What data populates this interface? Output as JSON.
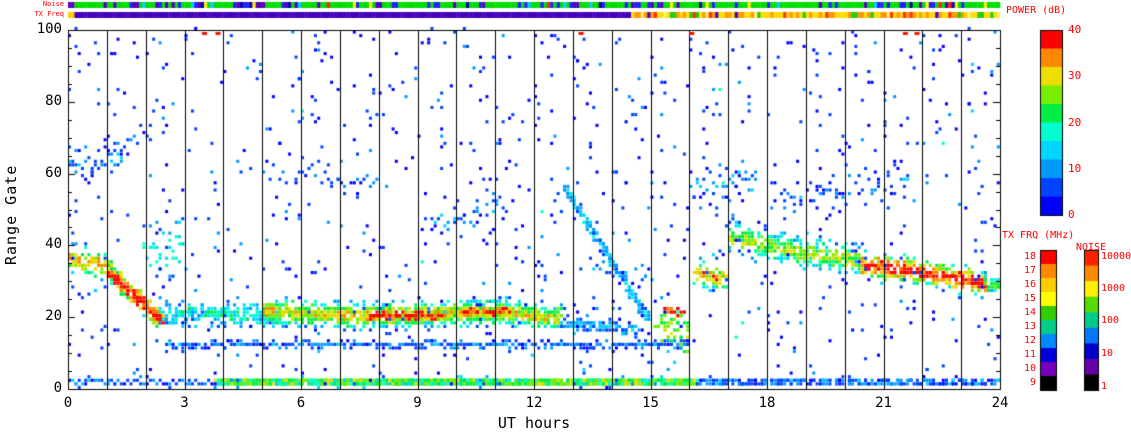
{
  "chart_data": {
    "type": "heatmap",
    "xlabel": "UT hours",
    "ylabel": "Range Gate",
    "xlim": [
      0,
      24
    ],
    "ylim": [
      0,
      100
    ],
    "x_ticks": [
      0,
      3,
      6,
      9,
      12,
      15,
      18,
      21,
      24
    ],
    "y_ticks": [
      0,
      20,
      40,
      60,
      80,
      100
    ],
    "grid": "vertical black line at every hour",
    "power_scale": {
      "min": 0,
      "max": 40,
      "colors": [
        "#0000ff",
        "#0044ff",
        "#0099ff",
        "#00d5ff",
        "#00ffd0",
        "#00ee44",
        "#77ee00",
        "#eedd00",
        "#ff8800",
        "#ff0000"
      ]
    },
    "colorbars": {
      "power": {
        "title": "POWER (dB)",
        "ticks": [
          40,
          30,
          20,
          10,
          0
        ],
        "colors_top_to_bottom": [
          "#ff0000",
          "#ff8800",
          "#eedd00",
          "#77ee00",
          "#00ee44",
          "#00ffd0",
          "#00d5ff",
          "#0099ff",
          "#0044ff",
          "#0000ff"
        ]
      },
      "tx_frq": {
        "title": "TX FRQ (MHz)",
        "ticks": [
          18,
          17,
          16,
          15,
          14,
          13,
          12,
          11,
          10,
          9
        ],
        "colors_top_to_bottom": [
          "#ff0000",
          "#ff8800",
          "#ffcc00",
          "#ffff00",
          "#33cc00",
          "#00cc88",
          "#0088ff",
          "#0000dd",
          "#7700bb",
          "#000000"
        ]
      },
      "noise": {
        "title": "NOISE",
        "ticks": [
          "10000",
          "1000",
          "100",
          "10",
          "1"
        ],
        "colors_top_to_bottom": [
          "#ff2200",
          "#ff8800",
          "#ffee00",
          "#55dd00",
          "#00cc88",
          "#0077ff",
          "#0000cc",
          "#6600aa",
          "#000000"
        ]
      }
    },
    "noise_strip": {
      "label": "Noise",
      "base_color": "#00dd00",
      "specks": [
        {
          "color": "#2222ff",
          "p": 0.14
        },
        {
          "color": "#5500bb",
          "p": 0.09
        },
        {
          "color": "#0000aa",
          "p": 0.04
        },
        {
          "color": "#00ccff",
          "p": 0.03
        },
        {
          "color": "#ff2200",
          "p": 0.02
        },
        {
          "color": "#ffee00",
          "p": 0.03
        }
      ]
    },
    "tx_freq_strip": {
      "label": "TX Freq",
      "segments": [
        {
          "t": [
            0,
            0.15
          ],
          "color": "#ffcc00"
        },
        {
          "t": [
            0.15,
            14.4
          ],
          "color": "#4400bb"
        },
        {
          "t": [
            14.4,
            24.01
          ],
          "mix": [
            {
              "color": "#ffdd00",
              "p": 0.38
            },
            {
              "color": "#ff9900",
              "p": 0.27
            },
            {
              "color": "#ff3300",
              "p": 0.1
            },
            {
              "color": "#22cc00",
              "p": 0.12
            },
            {
              "color": "#4400bb",
              "p": 0.07
            },
            {
              "color": "#ffee66",
              "p": 0.06
            }
          ]
        }
      ]
    },
    "features": [
      {
        "name": "h0-cluster",
        "t": [
          0.0,
          1.15
        ],
        "path": [
          [
            0.0,
            36
          ],
          [
            1.15,
            33
          ]
        ],
        "spread": 6,
        "density": 7,
        "p_core": 32,
        "p_edge": 4
      },
      {
        "name": "h0-upper",
        "t": [
          0.0,
          1.4
        ],
        "path": [
          [
            0.0,
            62
          ],
          [
            1.4,
            64
          ]
        ],
        "spread": 7,
        "density": 2,
        "p_core": 10,
        "p_edge": 2
      },
      {
        "name": "dawn-descending",
        "t": [
          1.05,
          2.45
        ],
        "path": [
          [
            1.05,
            32
          ],
          [
            2.45,
            18
          ]
        ],
        "spread": 4,
        "density": 12,
        "p_core": 40,
        "p_edge": 8
      },
      {
        "name": "dawn-column",
        "t": [
          1.95,
          3.0
        ],
        "path": [
          [
            1.95,
            38
          ],
          [
            3.0,
            40
          ]
        ],
        "spread": 11,
        "density": 3,
        "p_core": 16,
        "p_edge": 4
      },
      {
        "name": "morning-band",
        "t": [
          2.4,
          5.4
        ],
        "path": [
          [
            2.4,
            21
          ],
          [
            5.4,
            20
          ]
        ],
        "spread": 5,
        "density": 6,
        "p_core": 17,
        "p_edge": 4
      },
      {
        "name": "day-band",
        "t": [
          5.0,
          12.7
        ],
        "path": [
          [
            5.0,
            21
          ],
          [
            8.0,
            20
          ],
          [
            11.0,
            21
          ],
          [
            12.7,
            19
          ]
        ],
        "spread": 5,
        "density": 10,
        "p_core": 30,
        "p_edge": 4
      },
      {
        "name": "day-core-1",
        "t": [
          7.7,
          9.7
        ],
        "path": [
          [
            7.7,
            20
          ],
          [
            9.7,
            20
          ]
        ],
        "spread": 2,
        "density": 5,
        "p_core": 40,
        "p_edge": 20
      },
      {
        "name": "day-core-2",
        "t": [
          10.2,
          11.3
        ],
        "path": [
          [
            10.2,
            21
          ],
          [
            11.3,
            21
          ]
        ],
        "spread": 2,
        "density": 4,
        "p_core": 38,
        "p_edge": 18
      },
      {
        "name": "afternoon-thin",
        "t": [
          12.7,
          14.7
        ],
        "path": [
          [
            12.7,
            18
          ],
          [
            14.7,
            16
          ]
        ],
        "spread": 3,
        "density": 4,
        "p_core": 12,
        "p_edge": 3
      },
      {
        "name": "descending-streak",
        "t": [
          12.8,
          14.9
        ],
        "path": [
          [
            12.8,
            55
          ],
          [
            14.9,
            19
          ]
        ],
        "spread": 2,
        "density": 6,
        "p_core": 13,
        "p_edge": 4
      },
      {
        "name": "afternoon-specks",
        "t": [
          13.4,
          15.0
        ],
        "path": [
          [
            13.4,
            33
          ],
          [
            15.0,
            30
          ]
        ],
        "spread": 5,
        "density": 1,
        "p_core": 8,
        "p_edge": 1
      },
      {
        "name": "pre-dusk-column",
        "t": [
          15.15,
          15.95
        ],
        "path": [
          [
            15.15,
            17
          ],
          [
            15.95,
            14
          ]
        ],
        "spread": 11,
        "density": 6,
        "p_core": 26,
        "p_edge": 6
      },
      {
        "name": "pre-dusk-red",
        "t": [
          15.35,
          15.8
        ],
        "path": [
          [
            15.35,
            22
          ],
          [
            15.8,
            21
          ]
        ],
        "spread": 2,
        "density": 3,
        "p_core": 40,
        "p_edge": 25
      },
      {
        "name": "dusk-cluster",
        "t": [
          16.15,
          16.95
        ],
        "path": [
          [
            16.15,
            32
          ],
          [
            16.95,
            30
          ]
        ],
        "spread": 5,
        "density": 6,
        "p_core": 33,
        "p_edge": 6
      },
      {
        "name": "dusk-upper",
        "t": [
          16.0,
          17.7
        ],
        "path": [
          [
            16.0,
            55
          ],
          [
            17.7,
            58
          ]
        ],
        "spread": 9,
        "density": 2,
        "p_core": 9,
        "p_edge": 2
      },
      {
        "name": "evening-band",
        "t": [
          17.0,
          20.4
        ],
        "path": [
          [
            17.0,
            42
          ],
          [
            18.6,
            38
          ],
          [
            20.4,
            35
          ]
        ],
        "spread": 6,
        "density": 8,
        "p_core": 27,
        "p_edge": 4
      },
      {
        "name": "evening-intense",
        "t": [
          20.4,
          23.6
        ],
        "path": [
          [
            20.4,
            34
          ],
          [
            22.0,
            32
          ],
          [
            23.6,
            29
          ]
        ],
        "spread": 5,
        "density": 9,
        "p_core": 39,
        "p_edge": 6
      },
      {
        "name": "late-tail",
        "t": [
          23.6,
          24.0
        ],
        "path": [
          [
            23.6,
            29
          ],
          [
            24.0,
            28
          ]
        ],
        "spread": 4,
        "density": 6,
        "p_core": 24,
        "p_edge": 5
      },
      {
        "name": "evening-upper-scatter",
        "t": [
          18.4,
          21.6
        ],
        "path": [
          [
            18.4,
            52
          ],
          [
            21.6,
            58
          ]
        ],
        "spread": 7,
        "density": 1.5,
        "p_core": 8,
        "p_edge": 1
      },
      {
        "name": "ground-band",
        "t": [
          3.8,
          16.2
        ],
        "path": [
          [
            3.8,
            1.5
          ],
          [
            16.2,
            1.5
          ]
        ],
        "spread": 1.3,
        "density": 7,
        "p_core": 26,
        "p_edge": 6
      },
      {
        "name": "ground-sparse-early",
        "t": [
          0.0,
          3.8
        ],
        "path": [
          [
            0.0,
            1.5
          ],
          [
            3.8,
            1.5
          ]
        ],
        "spread": 1,
        "density": 1,
        "p_core": 8,
        "p_edge": 1
      },
      {
        "name": "ground-sparse-late",
        "t": [
          16.2,
          24.0
        ],
        "path": [
          [
            16.2,
            1.5
          ],
          [
            24.0,
            1.5
          ]
        ],
        "spread": 1,
        "density": 2.5,
        "p_core": 9,
        "p_edge": 1
      },
      {
        "name": "meteor-line",
        "t": [
          2.5,
          16.0
        ],
        "path": [
          [
            2.5,
            12
          ],
          [
            16.0,
            12
          ]
        ],
        "spread": 1.5,
        "density": 1.8,
        "p_core": 9,
        "p_edge": 2
      },
      {
        "name": "mid-scatter-9to11",
        "t": [
          9.1,
          11.3
        ],
        "path": [
          [
            9.1,
            46
          ],
          [
            11.3,
            50
          ]
        ],
        "spread": 5,
        "density": 1.2,
        "p_core": 9,
        "p_edge": 2
      },
      {
        "name": "h1-upper-specks",
        "t": [
          0.9,
          2.0
        ],
        "path": [
          [
            0.9,
            66
          ],
          [
            2.0,
            70
          ]
        ],
        "spread": 6,
        "density": 1,
        "p_core": 7,
        "p_edge": 1
      },
      {
        "name": "h5-7-upper-specks",
        "t": [
          5.0,
          8.2
        ],
        "path": [
          [
            5.0,
            60
          ],
          [
            8.2,
            57
          ]
        ],
        "spread": 6,
        "density": 0.8,
        "p_core": 7,
        "p_edge": 1
      }
    ],
    "top_marks_hours": [
      3.5,
      3.85,
      13.2,
      16.05,
      21.55,
      21.85
    ],
    "background_noise": {
      "sparse_count": 800,
      "sparse_power_max": 9,
      "bright_count": 70,
      "bright_power_max": 12
    }
  }
}
